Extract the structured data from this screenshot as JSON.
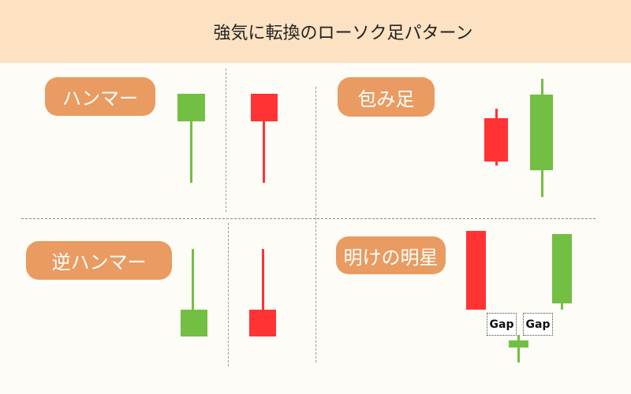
{
  "title": "強気に転換のローソク足パターン",
  "colors": {
    "bullish": "#72bf44",
    "bearish": "#ff3333",
    "label_bg": "#e99b61",
    "header_bg": "#fce2c2"
  },
  "patterns": {
    "hammer": {
      "label": "ハンマー"
    },
    "engulfing": {
      "label": "包み足"
    },
    "inverted_hammer": {
      "label": "逆ハンマー"
    },
    "morning_star": {
      "label": "明けの明星",
      "gap_labels": [
        "Gap",
        "Gap"
      ]
    }
  }
}
